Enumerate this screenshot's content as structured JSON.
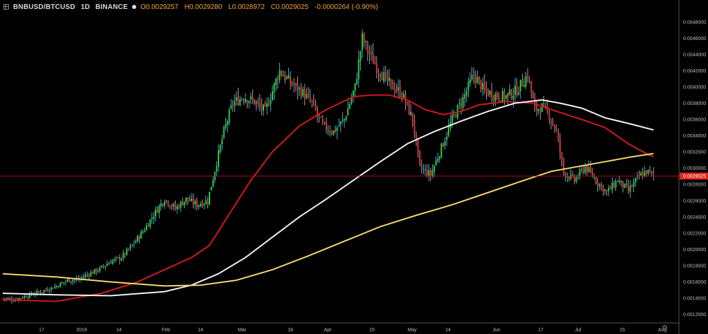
{
  "header": {
    "symbol": "BNBUSD/BTCUSD",
    "interval": "1D",
    "exchange": "BINANCE",
    "open": "O0.0029257",
    "high": "H0.0029280",
    "low": "L0.0028972",
    "close": "C0.0029025",
    "change": "-0.0000264 (-0.90%)"
  },
  "colors": {
    "background": "#000000",
    "up": "#2ecc40",
    "down": "#e03131",
    "wick_up": "#5ad6ff",
    "ma_short": "#d11a1a",
    "ma_mid": "#f2f2f2",
    "ma_long": "#f5d76e",
    "last_price_line": "#b01010"
  },
  "chart_data": {
    "type": "candlestick",
    "x_ticks": [
      "17",
      "2019",
      "14",
      "Feb",
      "14",
      "Mar",
      "18",
      "Apr",
      "15",
      "May",
      "14",
      "Jun",
      "17",
      "Jul",
      "15",
      "Aug"
    ],
    "y_ticks": [
      "0.0048000",
      "0.0046000",
      "0.0044000",
      "0.0042000",
      "0.0040000",
      "0.0038000",
      "0.0036000",
      "0.0034000",
      "0.0032000",
      "0.0030000",
      "0.0028000",
      "0.0026000",
      "0.0024000",
      "0.0022000",
      "0.0020000",
      "0.0018000",
      "0.0016000",
      "0.0014000",
      "0.0012000"
    ],
    "ylim": [
      0.00112,
      0.0049
    ],
    "last_price": 0.0029025,
    "last_price_label": "0.0029025",
    "close_keypoints": [
      [
        0,
        0.0014
      ],
      [
        6,
        0.00138
      ],
      [
        12,
        0.00142
      ],
      [
        18,
        0.00146
      ],
      [
        24,
        0.0015
      ],
      [
        30,
        0.00155
      ],
      [
        36,
        0.00162
      ],
      [
        42,
        0.00163
      ],
      [
        48,
        0.0017
      ],
      [
        54,
        0.00176
      ],
      [
        60,
        0.00185
      ],
      [
        66,
        0.0019
      ],
      [
        72,
        0.00205
      ],
      [
        78,
        0.00222
      ],
      [
        84,
        0.00243
      ],
      [
        90,
        0.00262
      ],
      [
        96,
        0.0025
      ],
      [
        102,
        0.00262
      ],
      [
        108,
        0.00255
      ],
      [
        114,
        0.0026
      ],
      [
        118,
        0.00298
      ],
      [
        123,
        0.00345
      ],
      [
        128,
        0.0038
      ],
      [
        134,
        0.00388
      ],
      [
        140,
        0.00382
      ],
      [
        146,
        0.0037
      ],
      [
        150,
        0.00395
      ],
      [
        154,
        0.0042
      ],
      [
        160,
        0.00405
      ],
      [
        166,
        0.00395
      ],
      [
        172,
        0.0038
      ],
      [
        178,
        0.00352
      ],
      [
        184,
        0.00345
      ],
      [
        190,
        0.0036
      ],
      [
        196,
        0.004
      ],
      [
        200,
        0.0046
      ],
      [
        204,
        0.0044
      ],
      [
        210,
        0.00418
      ],
      [
        216,
        0.00402
      ],
      [
        222,
        0.00392
      ],
      [
        228,
        0.0036
      ],
      [
        232,
        0.003
      ],
      [
        238,
        0.00292
      ],
      [
        244,
        0.00325
      ],
      [
        250,
        0.0036
      ],
      [
        256,
        0.00385
      ],
      [
        262,
        0.00415
      ],
      [
        268,
        0.00395
      ],
      [
        274,
        0.0039
      ],
      [
        280,
        0.00388
      ],
      [
        286,
        0.00396
      ],
      [
        292,
        0.00415
      ],
      [
        296,
        0.00372
      ],
      [
        300,
        0.00375
      ],
      [
        304,
        0.00365
      ],
      [
        308,
        0.00345
      ],
      [
        312,
        0.00295
      ],
      [
        318,
        0.00285
      ],
      [
        324,
        0.00302
      ],
      [
        330,
        0.00285
      ],
      [
        336,
        0.0027
      ],
      [
        342,
        0.00285
      ],
      [
        348,
        0.00272
      ],
      [
        354,
        0.0029
      ],
      [
        358,
        0.00296
      ],
      [
        362,
        0.00292
      ]
    ],
    "series": [
      {
        "key": "ma_short",
        "points": [
          [
            0,
            0.00138
          ],
          [
            30,
            0.00136
          ],
          [
            55,
            0.00146
          ],
          [
            75,
            0.0016
          ],
          [
            90,
            0.00175
          ],
          [
            105,
            0.0019
          ],
          [
            115,
            0.00205
          ],
          [
            125,
            0.0024
          ],
          [
            138,
            0.00285
          ],
          [
            150,
            0.0032
          ],
          [
            165,
            0.00352
          ],
          [
            180,
            0.00372
          ],
          [
            195,
            0.00388
          ],
          [
            205,
            0.0039
          ],
          [
            215,
            0.0039
          ],
          [
            225,
            0.00384
          ],
          [
            235,
            0.00372
          ],
          [
            245,
            0.00366
          ],
          [
            255,
            0.0037
          ],
          [
            265,
            0.00378
          ],
          [
            280,
            0.00382
          ],
          [
            295,
            0.0038
          ],
          [
            308,
            0.0037
          ],
          [
            322,
            0.0036
          ],
          [
            335,
            0.0035
          ],
          [
            348,
            0.0033
          ],
          [
            358,
            0.00318
          ],
          [
            362,
            0.00314
          ]
        ]
      },
      {
        "key": "ma_mid",
        "points": [
          [
            0,
            0.00146
          ],
          [
            30,
            0.00144
          ],
          [
            60,
            0.00143
          ],
          [
            90,
            0.00148
          ],
          [
            105,
            0.00156
          ],
          [
            120,
            0.0017
          ],
          [
            135,
            0.0019
          ],
          [
            150,
            0.00215
          ],
          [
            165,
            0.0024
          ],
          [
            180,
            0.00262
          ],
          [
            195,
            0.00285
          ],
          [
            210,
            0.00308
          ],
          [
            225,
            0.0033
          ],
          [
            240,
            0.00345
          ],
          [
            255,
            0.00358
          ],
          [
            270,
            0.0037
          ],
          [
            285,
            0.0038
          ],
          [
            300,
            0.00384
          ],
          [
            310,
            0.0038
          ],
          [
            322,
            0.00374
          ],
          [
            335,
            0.00362
          ],
          [
            350,
            0.00354
          ],
          [
            362,
            0.00347
          ]
        ]
      },
      {
        "key": "ma_long",
        "points": [
          [
            0,
            0.0017
          ],
          [
            30,
            0.00166
          ],
          [
            60,
            0.0016
          ],
          [
            90,
            0.00155
          ],
          [
            110,
            0.00156
          ],
          [
            130,
            0.00162
          ],
          [
            150,
            0.00175
          ],
          [
            170,
            0.00192
          ],
          [
            190,
            0.0021
          ],
          [
            210,
            0.00228
          ],
          [
            230,
            0.00242
          ],
          [
            250,
            0.00255
          ],
          [
            270,
            0.0027
          ],
          [
            290,
            0.00285
          ],
          [
            305,
            0.00296
          ],
          [
            320,
            0.00302
          ],
          [
            335,
            0.00308
          ],
          [
            350,
            0.00314
          ],
          [
            362,
            0.00318
          ]
        ]
      }
    ]
  },
  "settings_icon": "gear-icon"
}
